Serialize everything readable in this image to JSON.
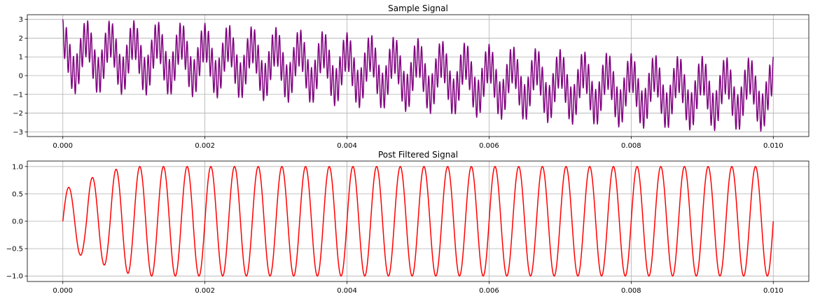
{
  "chart_data": [
    {
      "type": "line",
      "title": "Sample Signal",
      "xlabel": "",
      "ylabel": "",
      "xlim": [
        -0.0005,
        0.0105
      ],
      "ylim": [
        -3.25,
        3.25
      ],
      "xticks": [
        0.0,
        0.002,
        0.004,
        0.006,
        0.008,
        0.01
      ],
      "xtick_labels": [
        "0.000",
        "0.002",
        "0.004",
        "0.006",
        "0.008",
        "0.010"
      ],
      "yticks": [
        -3,
        -2,
        -1,
        0,
        1,
        2,
        3
      ],
      "ytick_labels": [
        "−3",
        "−2",
        "−1",
        "0",
        "1",
        "2",
        "3"
      ],
      "grid": true,
      "series": [
        {
          "color": "#800080",
          "x_range": [
            0.0,
            0.01
          ],
          "points": 2001,
          "components": [
            {
              "amplitude": 1.0,
              "frequency_hz": 3000,
              "phase": "cos"
            },
            {
              "amplitude": 1.0,
              "frequency_hz": 50,
              "phase": "cos"
            },
            {
              "amplitude": 1.0,
              "frequency_hz": 20000,
              "phase": "cos"
            }
          ]
        }
      ]
    },
    {
      "type": "line",
      "title": "Post Filtered Signal",
      "xlabel": "",
      "ylabel": "",
      "xlim": [
        -0.0005,
        0.0105
      ],
      "ylim": [
        -1.1,
        1.1
      ],
      "xticks": [
        0.0,
        0.002,
        0.004,
        0.006,
        0.008,
        0.01
      ],
      "xtick_labels": [
        "0.000",
        "0.002",
        "0.004",
        "0.006",
        "0.008",
        "0.010"
      ],
      "yticks": [
        -1.0,
        -0.5,
        0.0,
        0.5,
        1.0
      ],
      "ytick_labels": [
        "−1.0",
        "−0.5",
        "0.0",
        "0.5",
        "1.0"
      ],
      "grid": true,
      "series": [
        {
          "color": "#ff0000",
          "x_range": [
            0.0,
            0.01
          ],
          "points": 2001,
          "frequency_hz": 3000,
          "amplitude": 1.0,
          "peaks_first_cycles": [
            0.62,
            0.8,
            0.95
          ]
        }
      ]
    }
  ]
}
